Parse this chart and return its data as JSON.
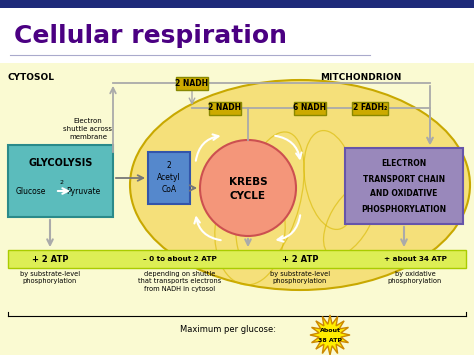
{
  "title": "Cellular respiration",
  "title_color": "#4B0082",
  "title_fontsize": 18,
  "bg_color": "#FFFFFF",
  "diagram_bg": "#FAFAD2",
  "cytosol_label": "CYTOSOL",
  "mito_label": "MITCHONDRION",
  "glycolysis_color": "#5BBCBC",
  "acetyl_color": "#5588CC",
  "krebs_color": "#F4967A",
  "etc_color": "#9988BB",
  "star_color": "#FFEE00",
  "nadh_box_color": "#CCAA00",
  "bottom_bar_color": "#DDEE55",
  "top_bar_color": "#1E2A7A",
  "mito_fill": "#F5E07A",
  "mito_edge": "#C8A800",
  "arrow_color": "#AAAAAA",
  "line_color": "#777777"
}
